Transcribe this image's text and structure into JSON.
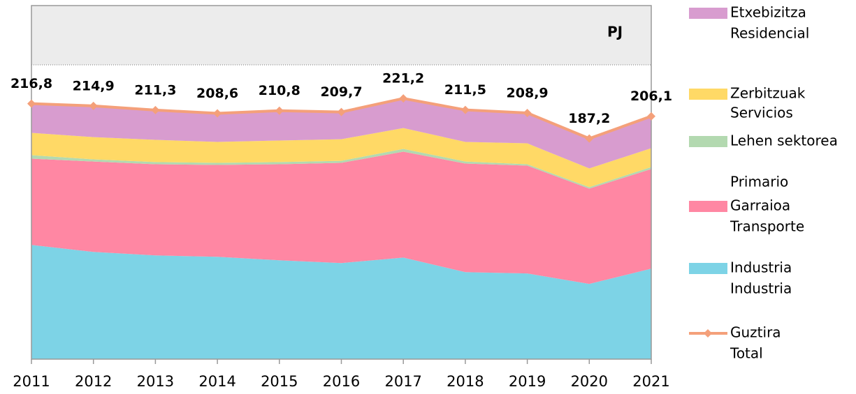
{
  "chart_data": {
    "type": "area",
    "annotation": "PJ",
    "categories": [
      "2011",
      "2012",
      "2013",
      "2014",
      "2015",
      "2016",
      "2017",
      "2018",
      "2019",
      "2020",
      "2021"
    ],
    "ylim": [
      0,
      300
    ],
    "series": [
      {
        "name": [
          "Industria",
          "Industria"
        ],
        "color": "#7dd3e6",
        "values": [
          96.9,
          91.0,
          88.0,
          86.8,
          83.9,
          81.5,
          86.2,
          73.8,
          72.7,
          63.8,
          76.8
        ]
      },
      {
        "name": [
          "Garraioa",
          "Transporte"
        ],
        "color": "#ff87a3",
        "values": [
          73.2,
          76.7,
          77.4,
          78.0,
          81.5,
          85.1,
          89.8,
          92.2,
          91.5,
          80.9,
          84.5
        ]
      },
      {
        "name": [
          "Lehen sektorea",
          "Primario"
        ],
        "color": "#b3d9b0",
        "values": [
          3.0,
          1.8,
          1.8,
          1.8,
          1.8,
          1.7,
          2.4,
          1.7,
          1.2,
          1.2,
          1.7
        ]
      },
      {
        "name": [
          "Zerbitzuak",
          "Servicios"
        ],
        "color": "#ffd966",
        "values": [
          18.9,
          18.9,
          18.9,
          17.7,
          18.3,
          18.3,
          17.7,
          16.6,
          17.7,
          15.9,
          16.0
        ]
      },
      {
        "name": [
          "Etxebizitza",
          "Residencial"
        ],
        "color": "#d89ccf",
        "values": [
          24.8,
          26.5,
          25.2,
          24.3,
          25.3,
          23.1,
          25.1,
          27.2,
          25.8,
          25.4,
          27.1
        ]
      }
    ],
    "total": {
      "name": [
        "Guztira",
        "Total"
      ],
      "color": "#f4a07a",
      "values": [
        216.8,
        214.9,
        211.3,
        208.6,
        210.8,
        209.7,
        221.2,
        211.5,
        208.9,
        187.2,
        206.1
      ],
      "value_labels": [
        "216,8",
        "214,9",
        "211,3",
        "208,6",
        "210,8",
        "209,7",
        "221,2",
        "211,5",
        "208,9",
        "187,2",
        "206,1"
      ]
    }
  }
}
